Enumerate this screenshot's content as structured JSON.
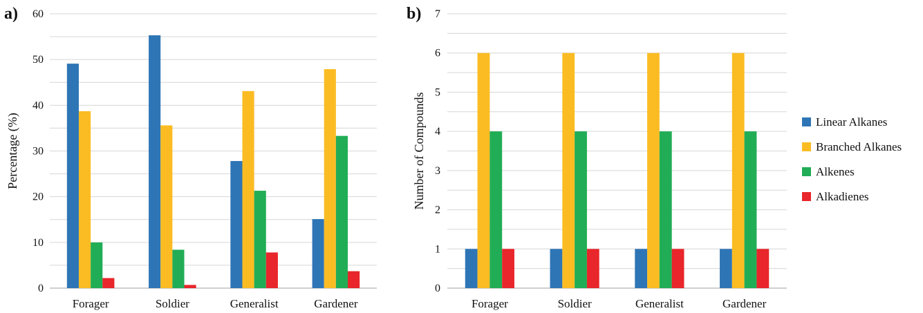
{
  "colors": {
    "Linear Alkanes": "#2e75b6",
    "Branched Alkanes": "#fbbc23",
    "Alkenes": "#21ad55",
    "Alkadienes": "#e8262b",
    "grid": "#d6d6d6",
    "axis": "#bfbfbf"
  },
  "legend": {
    "placement": "right",
    "items": [
      "Linear Alkanes",
      "Branched Alkanes",
      "Alkenes",
      "Alkadienes"
    ]
  },
  "chart_data": [
    {
      "type": "bar",
      "panel_label": "a)",
      "ylabel": "Percentage (%)",
      "xlabel": "",
      "ylim": [
        0,
        60
      ],
      "yticks": [
        0,
        10,
        20,
        30,
        40,
        50,
        60
      ],
      "grid": true,
      "categories": [
        "Forager",
        "Soldier",
        "Generalist",
        "Gardener"
      ],
      "series": [
        {
          "name": "Linear Alkanes",
          "values": [
            49.1,
            55.3,
            27.8,
            15.1
          ]
        },
        {
          "name": "Branched Alkanes",
          "values": [
            38.7,
            35.6,
            43.1,
            47.9
          ]
        },
        {
          "name": "Alkenes",
          "values": [
            10.0,
            8.4,
            21.3,
            33.3
          ]
        },
        {
          "name": "Alkadienes",
          "values": [
            2.2,
            0.7,
            7.8,
            3.7
          ]
        }
      ]
    },
    {
      "type": "bar",
      "panel_label": "b)",
      "ylabel": "Number of Compounds",
      "xlabel": "",
      "ylim": [
        0,
        7
      ],
      "yticks": [
        0,
        1,
        2,
        3,
        4,
        5,
        6,
        7
      ],
      "grid": true,
      "categories": [
        "Forager",
        "Soldier",
        "Generalist",
        "Gardener"
      ],
      "series": [
        {
          "name": "Linear Alkanes",
          "values": [
            1,
            1,
            1,
            1
          ]
        },
        {
          "name": "Branched Alkanes",
          "values": [
            6,
            6,
            6,
            6
          ]
        },
        {
          "name": "Alkenes",
          "values": [
            4,
            4,
            4,
            4
          ]
        },
        {
          "name": "Alkadienes",
          "values": [
            1,
            1,
            1,
            1
          ]
        }
      ]
    }
  ]
}
